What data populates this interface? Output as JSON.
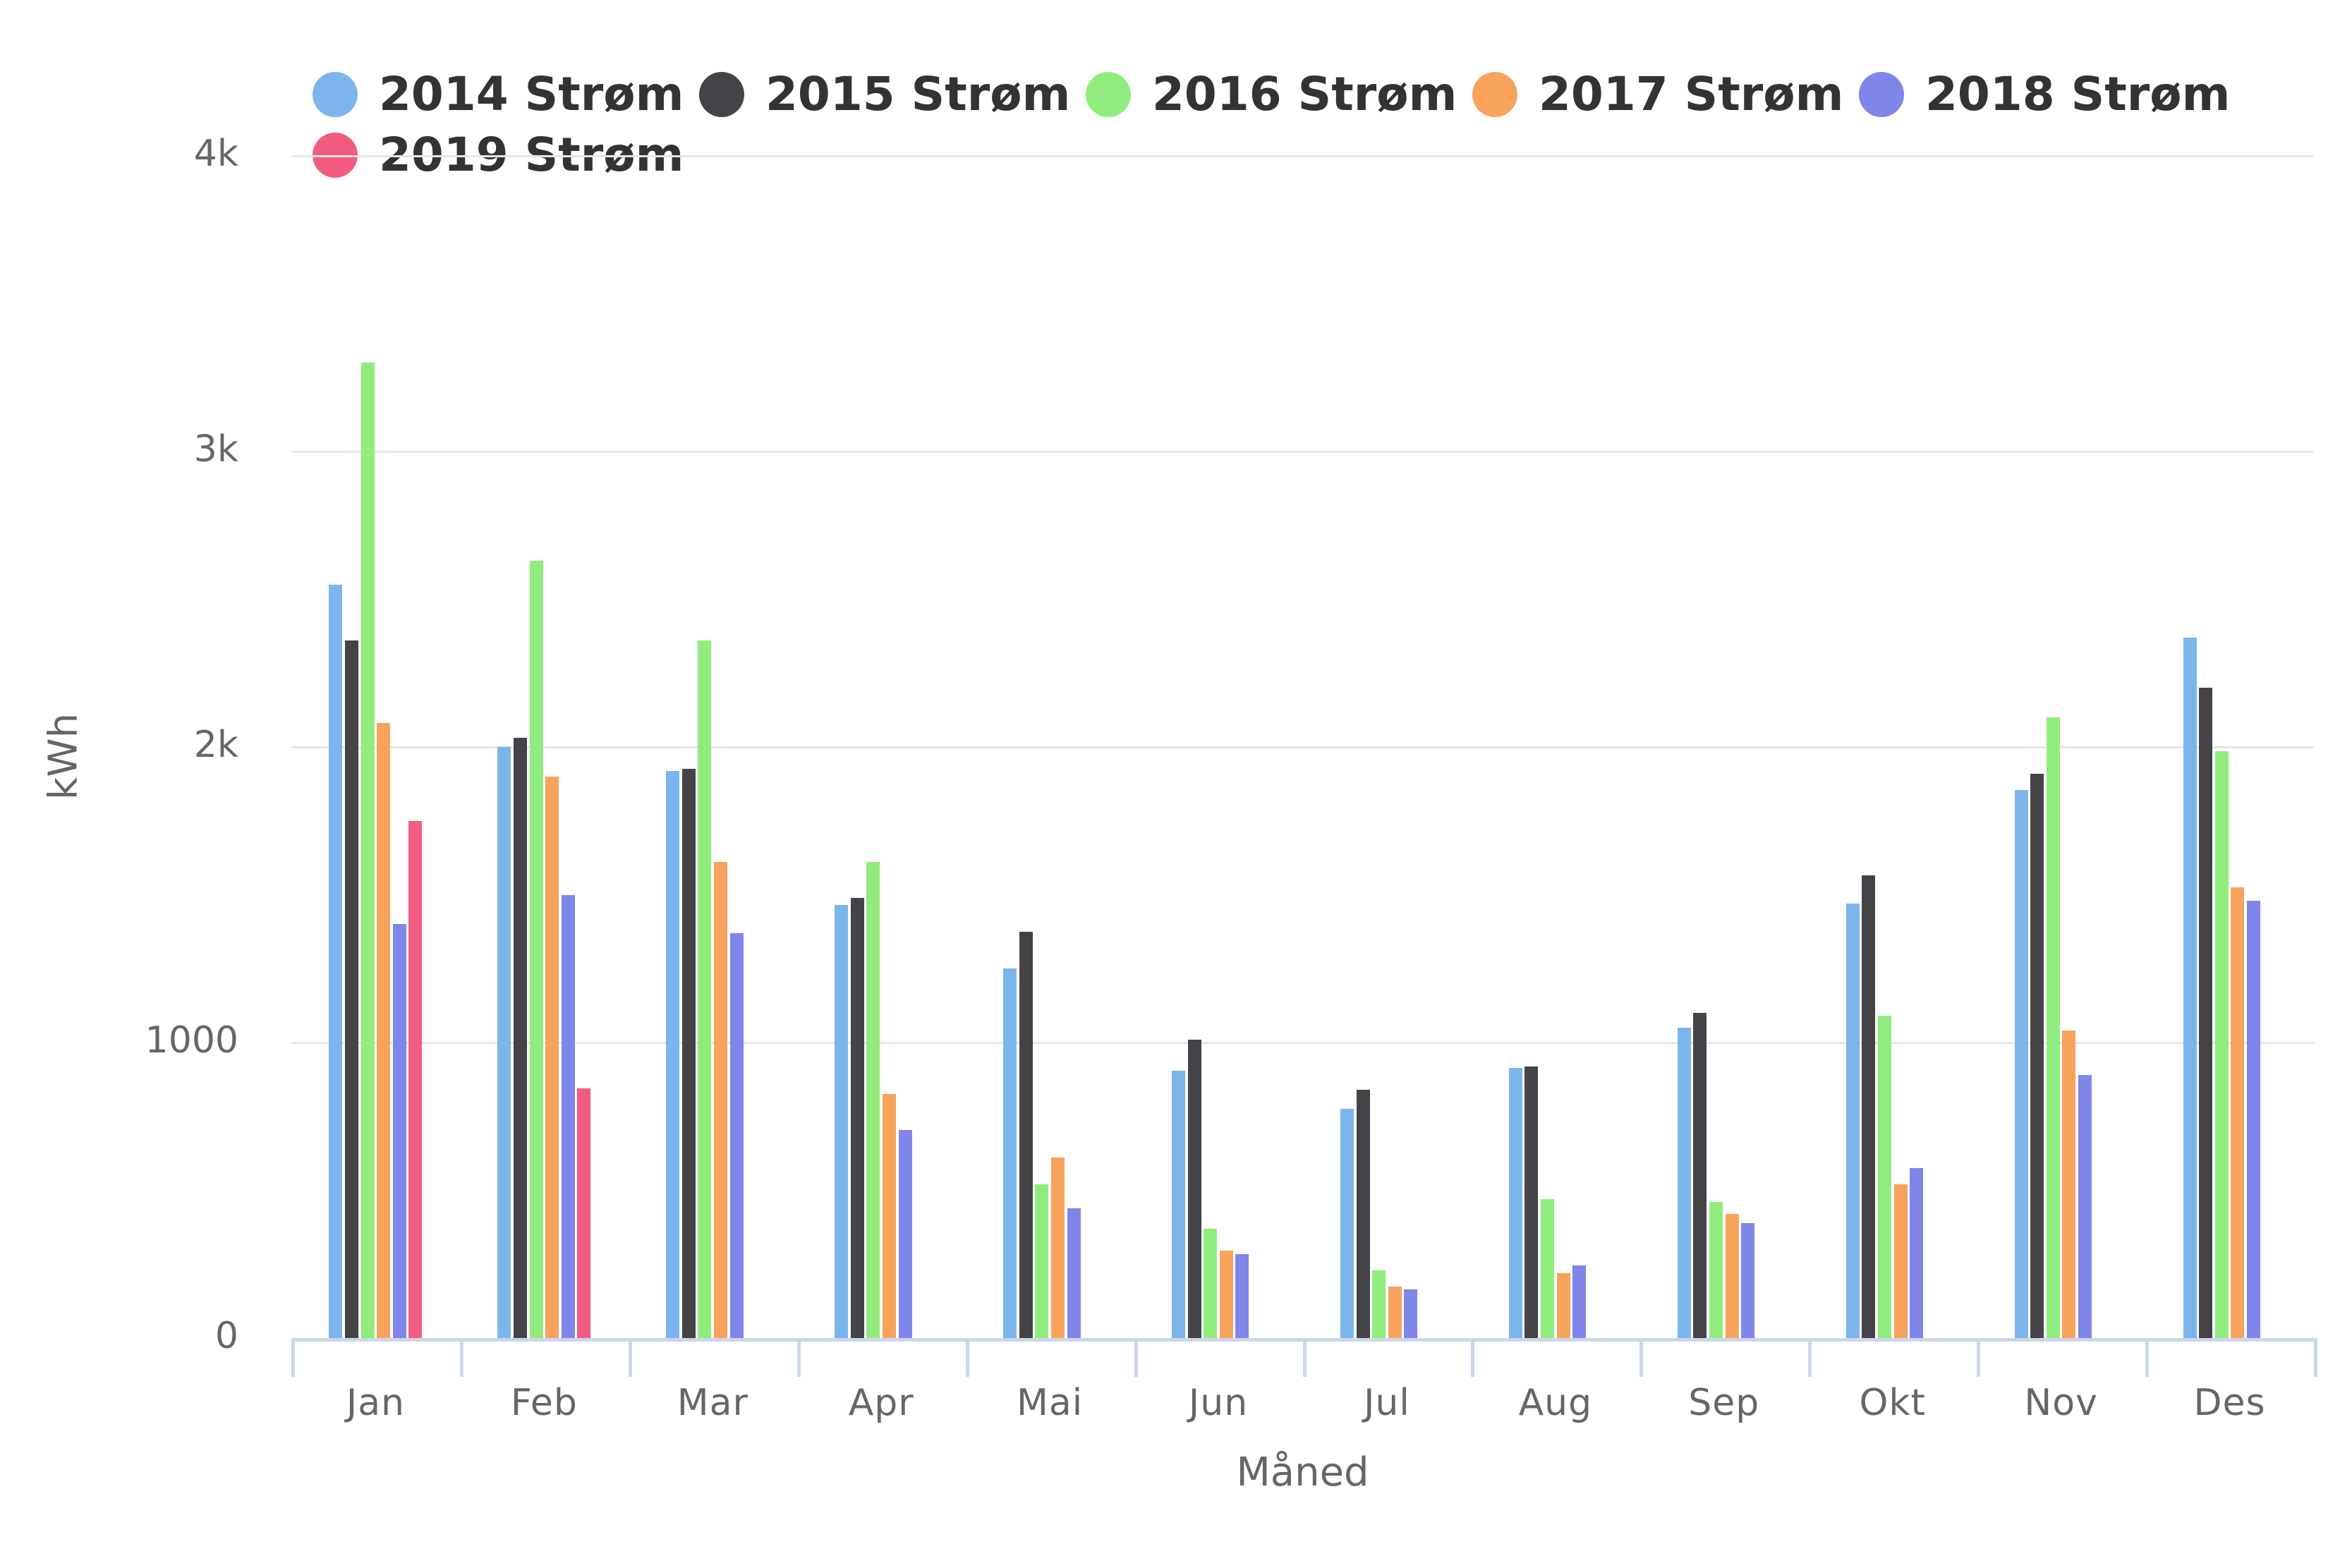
{
  "chart_data": {
    "type": "bar",
    "categories": [
      "Jan",
      "Feb",
      "Mar",
      "Apr",
      "Mai",
      "Jun",
      "Jul",
      "Aug",
      "Sep",
      "Okt",
      "Nov",
      "Des"
    ],
    "series": [
      {
        "name": "2014 Strøm",
        "color": "#7cb5ec",
        "values": [
          2550,
          2000,
          1920,
          1465,
          1250,
          905,
          775,
          915,
          1050,
          1470,
          1855,
          2370
        ]
      },
      {
        "name": "2015 Strøm",
        "color": "#434348",
        "values": [
          2360,
          2030,
          1925,
          1490,
          1375,
          1010,
          840,
          920,
          1100,
          1565,
          1910,
          2200
        ]
      },
      {
        "name": "2016 Strøm",
        "color": "#90ed7d",
        "values": [
          3300,
          2630,
          2360,
          1610,
          520,
          370,
          230,
          470,
          460,
          1090,
          2100,
          1985
        ]
      },
      {
        "name": "2017 Strøm",
        "color": "#f7a35c",
        "values": [
          2080,
          1900,
          1610,
          825,
          610,
          295,
          175,
          220,
          420,
          520,
          1040,
          1525
        ]
      },
      {
        "name": "2018 Strøm",
        "color": "#8085e9",
        "values": [
          1400,
          1500,
          1370,
          705,
          440,
          285,
          165,
          245,
          390,
          575,
          890,
          1480
        ]
      },
      {
        "name": "2019 Strøm",
        "color": "#f15c80",
        "values": [
          1750,
          845,
          null,
          null,
          null,
          null,
          null,
          null,
          null,
          null,
          null,
          null
        ]
      }
    ],
    "xlabel": "Måned",
    "ylabel": "kWh",
    "ylim": [
      0,
      4000
    ],
    "yticks": [
      {
        "value": 0,
        "label": "0"
      },
      {
        "value": 1000,
        "label": "1000"
      },
      {
        "value": 2000,
        "label": "2k"
      },
      {
        "value": 3000,
        "label": "3k"
      },
      {
        "value": 4000,
        "label": "4k"
      }
    ],
    "grid": true,
    "legend_position": "top"
  },
  "colors": {
    "grid": "#e6e6e6",
    "axis": "#ccd6eb",
    "tick_label": "#666666",
    "axis_title": "#666666",
    "legend_text": "#333333",
    "background": "#ffffff"
  }
}
